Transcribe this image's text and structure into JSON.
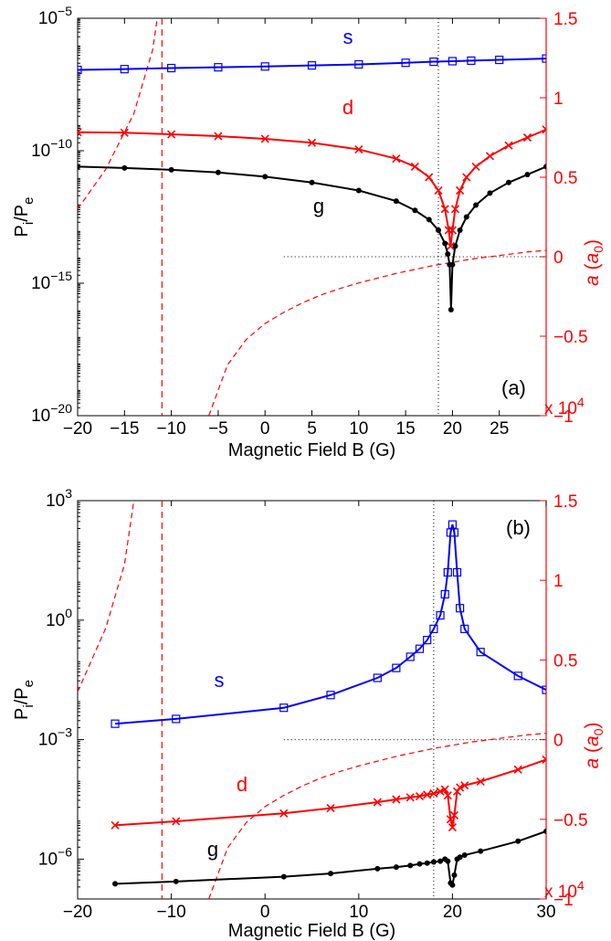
{
  "chart_data": [
    {
      "type": "line",
      "panel_label": "(a)",
      "xlabel": "Magnetic Field B (G)",
      "ylabel": "P_i/P_e",
      "ylabel_right": "a (a_0)",
      "right_axis_multiplier": "x 10^4",
      "xlim": [
        -20,
        30
      ],
      "xticks": [
        -20,
        -15,
        -10,
        -5,
        0,
        5,
        10,
        15,
        20,
        25
      ],
      "yscale": "log",
      "ylim_exponent": [
        -20,
        -5
      ],
      "yticks_exponent": [
        -20,
        -15,
        -10,
        -5
      ],
      "ylim_right": [
        -1,
        1.5
      ],
      "yticks_right": [
        "1.5",
        "1",
        "0.5",
        "0",
        "-0.5",
        "-1"
      ],
      "series": [
        {
          "name": "s",
          "color": "#0000ff",
          "marker": "square",
          "x": [
            -20,
            -15,
            -10,
            -5,
            0,
            5,
            10,
            15,
            18,
            20,
            22,
            25,
            30
          ],
          "log10_y": [
            -6.95,
            -6.92,
            -6.88,
            -6.85,
            -6.82,
            -6.78,
            -6.74,
            -6.68,
            -6.64,
            -6.62,
            -6.6,
            -6.57,
            -6.52
          ]
        },
        {
          "name": "d",
          "color": "#ff0000",
          "marker": "x",
          "x": [
            -20,
            -15,
            -10,
            -5,
            0,
            5,
            10,
            14,
            16,
            17.5,
            18.5,
            19.2,
            19.6,
            19.8,
            20.0,
            20.3,
            20.8,
            21.5,
            22.5,
            24,
            26,
            28,
            30
          ],
          "log10_y": [
            -9.3,
            -9.32,
            -9.38,
            -9.45,
            -9.55,
            -9.7,
            -9.95,
            -10.3,
            -10.6,
            -11.0,
            -11.5,
            -12.2,
            -13.0,
            -13.6,
            -13.0,
            -12.2,
            -11.5,
            -11.0,
            -10.6,
            -10.2,
            -9.8,
            -9.5,
            -9.2
          ]
        },
        {
          "name": "g",
          "color": "#000000",
          "marker": "dot",
          "x": [
            -20,
            -15,
            -10,
            -5,
            0,
            5,
            10,
            14,
            16,
            17.5,
            18.5,
            19.2,
            19.5,
            19.7,
            19.85,
            20.0,
            20.3,
            20.8,
            21.5,
            22.5,
            24,
            26,
            28,
            30
          ],
          "log10_y": [
            -10.6,
            -10.65,
            -10.72,
            -10.82,
            -10.98,
            -11.2,
            -11.5,
            -11.9,
            -12.25,
            -12.6,
            -13.0,
            -13.5,
            -13.9,
            -14.3,
            -16.0,
            -14.3,
            -13.6,
            -13.0,
            -12.5,
            -12.05,
            -11.6,
            -11.2,
            -10.9,
            -10.6
          ]
        }
      ],
      "scattering_length_curve": {
        "color": "#ff0000",
        "style": "dashed",
        "x": [
          -20,
          -17,
          -14,
          -12,
          -11.5
        ],
        "a_1e4": [
          0.3,
          0.55,
          0.9,
          1.3,
          1.5
        ],
        "x2": [
          -6,
          -4,
          -2,
          0,
          2,
          4,
          6,
          8,
          10,
          12,
          14,
          16,
          18,
          20,
          22,
          24,
          26,
          28,
          30
        ],
        "a2_1e4": [
          -1.0,
          -0.68,
          -0.52,
          -0.42,
          -0.35,
          -0.29,
          -0.24,
          -0.2,
          -0.165,
          -0.135,
          -0.105,
          -0.08,
          -0.055,
          -0.035,
          -0.015,
          0.0,
          0.015,
          0.03,
          0.04
        ],
        "vertical_dashed_at": -11
      },
      "reference_lines": {
        "vertical_dotted_x": 18.5,
        "horizontal_dotted_a": 0
      }
    },
    {
      "type": "line",
      "panel_label": "(b)",
      "xlabel": "Magnetic Field B (G)",
      "ylabel": "P_i/P_e",
      "ylabel_right": "a (a_0)",
      "right_axis_multiplier": "x 10^4",
      "xlim": [
        -20,
        30
      ],
      "xticks": [
        -20,
        -10,
        0,
        10,
        20,
        30
      ],
      "yscale": "log",
      "ylim_exponent": [
        -7,
        3
      ],
      "yticks_exponent": [
        -6,
        -3,
        0,
        3
      ],
      "ylim_right": [
        -1,
        1.5
      ],
      "yticks_right": [
        "1.5",
        "1",
        "0.5",
        "0",
        "-0.5",
        "-1"
      ],
      "series": [
        {
          "name": "s",
          "color": "#0000ff",
          "marker": "square",
          "x": [
            -16,
            -9.5,
            2,
            7,
            12,
            14,
            15.5,
            16.5,
            17.3,
            18,
            18.7,
            19.2,
            19.5,
            19.8,
            20.0,
            20.2,
            20.5,
            20.8,
            21.3,
            23,
            27,
            30
          ],
          "log10_y": [
            -2.6,
            -2.48,
            -2.2,
            -1.88,
            -1.45,
            -1.2,
            -0.92,
            -0.72,
            -0.5,
            -0.22,
            0.12,
            0.65,
            1.2,
            2.2,
            2.4,
            2.2,
            1.2,
            0.3,
            -0.22,
            -0.8,
            -1.4,
            -1.75
          ]
        },
        {
          "name": "d",
          "color": "#ff0000",
          "marker": "x",
          "x": [
            -16,
            -9.5,
            2,
            7,
            12,
            14,
            15.5,
            16.5,
            17.3,
            18,
            18.7,
            19.2,
            19.5,
            19.8,
            20.0,
            20.2,
            20.5,
            20.8,
            21.3,
            23,
            27,
            30
          ],
          "log10_y": [
            -5.15,
            -5.05,
            -4.85,
            -4.72,
            -4.57,
            -4.5,
            -4.45,
            -4.42,
            -4.38,
            -4.35,
            -4.3,
            -4.25,
            -4.4,
            -5.0,
            -5.2,
            -4.9,
            -4.3,
            -4.2,
            -4.15,
            -4.05,
            -3.75,
            -3.5
          ]
        },
        {
          "name": "g",
          "color": "#000000",
          "marker": "dot",
          "x": [
            -16,
            -9.5,
            2,
            7,
            12,
            14,
            15.5,
            16.5,
            17.3,
            18,
            18.7,
            19.2,
            19.5,
            19.8,
            20.0,
            20.2,
            20.5,
            20.8,
            21.3,
            23,
            27,
            30
          ],
          "log10_y": [
            -6.62,
            -6.56,
            -6.44,
            -6.36,
            -6.24,
            -6.2,
            -6.16,
            -6.12,
            -6.1,
            -6.07,
            -6.05,
            -6.0,
            -6.05,
            -6.6,
            -6.65,
            -6.4,
            -6.0,
            -5.95,
            -5.9,
            -5.8,
            -5.55,
            -5.3
          ]
        }
      ],
      "scattering_length_curve": {
        "color": "#ff0000",
        "style": "dashed",
        "x": [
          -20,
          -17,
          -15,
          -14
        ],
        "a_1e4": [
          0.3,
          0.7,
          1.1,
          1.5
        ],
        "x2": [
          -6,
          -4,
          -2,
          0,
          2,
          4,
          6,
          8,
          10,
          12,
          14,
          16,
          18,
          20,
          22,
          24,
          26,
          28,
          30
        ],
        "a2_1e4": [
          -1.0,
          -0.68,
          -0.52,
          -0.42,
          -0.35,
          -0.29,
          -0.24,
          -0.2,
          -0.165,
          -0.135,
          -0.105,
          -0.08,
          -0.055,
          -0.035,
          -0.015,
          0.0,
          0.015,
          0.03,
          0.04
        ],
        "vertical_dashed_at": -11
      },
      "reference_lines": {
        "vertical_dotted_x": 18,
        "horizontal_dotted_a": 0
      }
    }
  ],
  "labels": {
    "a": {
      "s": "s",
      "d": "d",
      "g": "g",
      "panel": "(a)",
      "xlabel": "Magnetic Field B (G)"
    },
    "b": {
      "s": "s",
      "d": "d",
      "g": "g",
      "panel": "(b)",
      "xlabel": "Magnetic Field B (G)"
    }
  }
}
